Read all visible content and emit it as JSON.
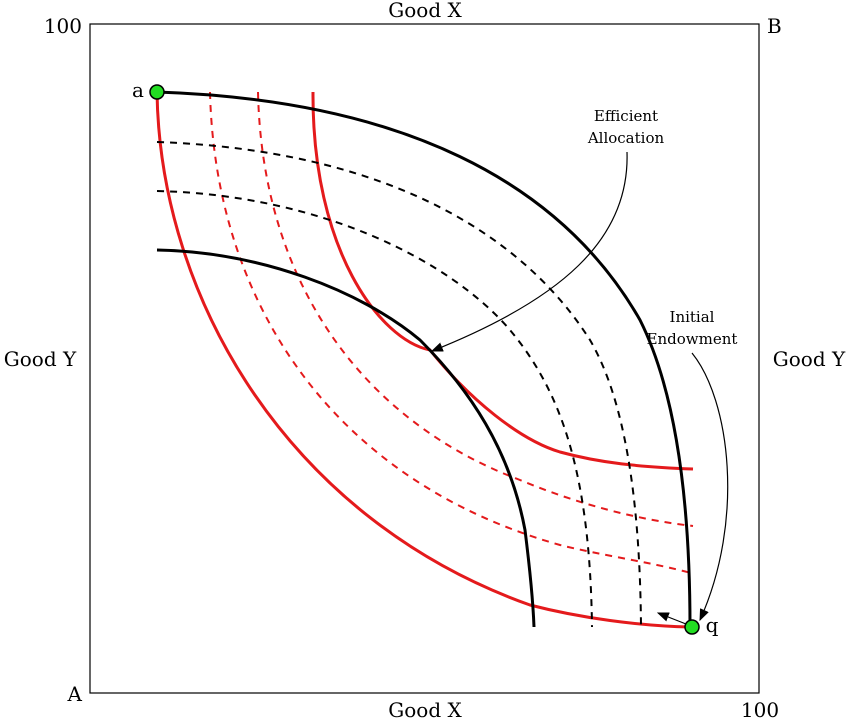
{
  "diagram": {
    "corner_labels": {
      "top_left": "100",
      "top_right": "B",
      "bottom_left": "A",
      "bottom_right": "100"
    },
    "axis_labels": {
      "top": "Good X",
      "bottom": "Good X",
      "left": "Good Y",
      "right": "Good Y"
    },
    "points": {
      "a": "a",
      "q": "q"
    },
    "annotations": {
      "efficient_line1": "Efficient",
      "efficient_line2": "Allocation",
      "initial_line1": "Initial",
      "initial_line2": "Endowment"
    },
    "colors": {
      "black_curves": "#000000",
      "red_curves": "#e41a1c",
      "points": "#22dd22"
    }
  }
}
